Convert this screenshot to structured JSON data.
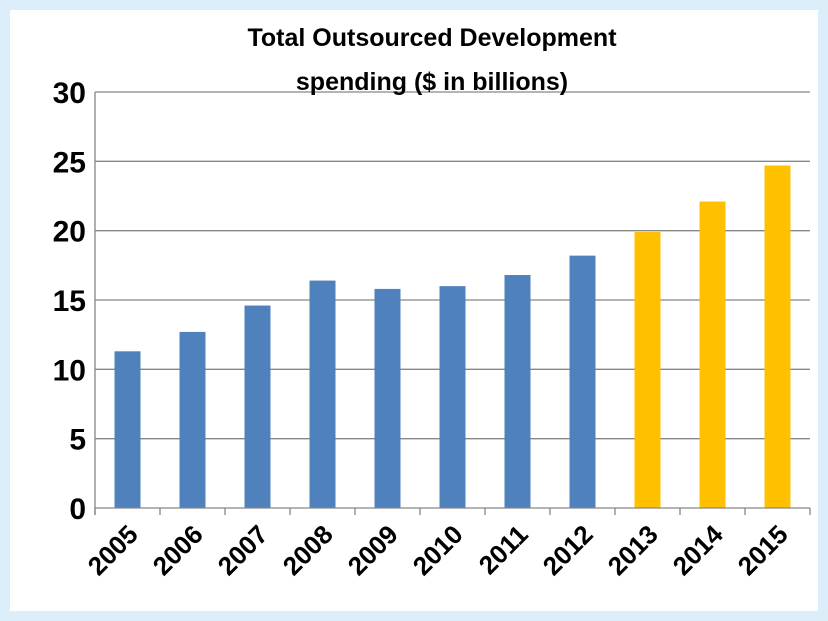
{
  "chart_data": {
    "type": "bar",
    "title_lines": [
      "Total Outsourced Development",
      "spending ($ in billions)"
    ],
    "title": "Total Outsourced Development spending ($ in billions)",
    "xlabel": "",
    "ylabel": "",
    "categories": [
      "2005",
      "2006",
      "2007",
      "2008",
      "2009",
      "2010",
      "2011",
      "2012",
      "2013",
      "2014",
      "2015"
    ],
    "values": [
      11.3,
      12.7,
      14.6,
      16.4,
      15.8,
      16.0,
      16.8,
      18.2,
      19.9,
      22.1,
      24.7
    ],
    "bar_colors": [
      "#4f81bd",
      "#4f81bd",
      "#4f81bd",
      "#4f81bd",
      "#4f81bd",
      "#4f81bd",
      "#4f81bd",
      "#4f81bd",
      "#ffc000",
      "#ffc000",
      "#ffc000"
    ],
    "yticks": [
      0,
      5,
      10,
      15,
      20,
      25,
      30
    ],
    "ylim": [
      0,
      30
    ],
    "grid": true,
    "legend": "none"
  },
  "colors": {
    "background": "#dbeefa",
    "plot_background": "#ffffff",
    "actual_bar": "#4f81bd",
    "projected_bar": "#ffc000",
    "gridline": "#868686"
  }
}
